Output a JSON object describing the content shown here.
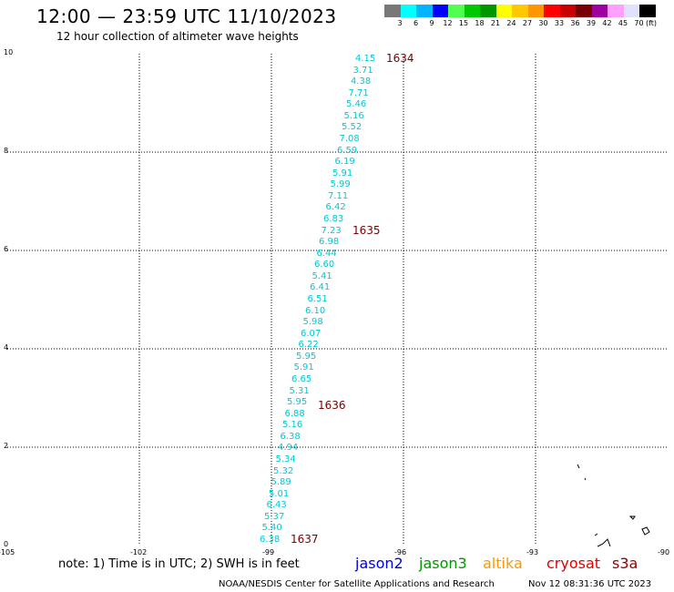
{
  "header": {
    "title": "12:00 — 23:59 UTC 11/10/2023",
    "subtitle": "12 hour collection of altimeter wave heights"
  },
  "scale": {
    "unit": "(ft)",
    "labels": [
      "3",
      "6",
      "9",
      "12",
      "15",
      "18",
      "21",
      "24",
      "27",
      "30",
      "33",
      "36",
      "39",
      "42",
      "45",
      "70"
    ],
    "colors": [
      "#787878",
      "#00ffff",
      "#00b4ff",
      "#0000ff",
      "#50ff50",
      "#00c800",
      "#009600",
      "#ffff00",
      "#ffc800",
      "#ff9600",
      "#ff0000",
      "#c80000",
      "#780000",
      "#a000a0",
      "#ffa0ff",
      "#e0e0ff",
      "#000000"
    ]
  },
  "map": {
    "x_ticks": [
      "-105",
      "-102",
      "-99",
      "-96",
      "-93",
      "-90"
    ],
    "y_ticks": [
      "0",
      "2",
      "4",
      "6",
      "8",
      "10"
    ],
    "passes": [
      "1634",
      "1635",
      "1636",
      "1637"
    ],
    "wave_heights": [
      "4.15",
      "3.71",
      "4.38",
      "7.71",
      "5.46",
      "5.16",
      "5.52",
      "7.08",
      "6.59",
      "6.19",
      "5.91",
      "5.99",
      "7.11",
      "6.42",
      "6.83",
      "7.23",
      "6.98",
      "6.44",
      "6.60",
      "5.41",
      "6.41",
      "6.51",
      "6.10",
      "5.98",
      "6.07",
      "6.22",
      "5.95",
      "5.91",
      "6.65",
      "5.31",
      "5.95",
      "6.88",
      "5.16",
      "6.38",
      "4.94",
      "5.34",
      "5.32",
      "5.89",
      "5.01",
      "6.43",
      "5.37",
      "5.40",
      "6.38"
    ]
  },
  "footer": {
    "note": "note:  1) Time is in UTC;  2) SWH is in feet",
    "satellites": [
      {
        "name": "jason2",
        "color": "#0000e0"
      },
      {
        "name": "jason3",
        "color": "#009600"
      },
      {
        "name": "altika",
        "color": "#ff9600"
      },
      {
        "name": "cryosat",
        "color": "#e00000"
      },
      {
        "name": "s3a",
        "color": "#900000"
      }
    ],
    "center": "NOAA/NESDIS Center for Satellite Applications and Research",
    "timestamp": "Nov 12 08:31:36 UTC 2023"
  }
}
